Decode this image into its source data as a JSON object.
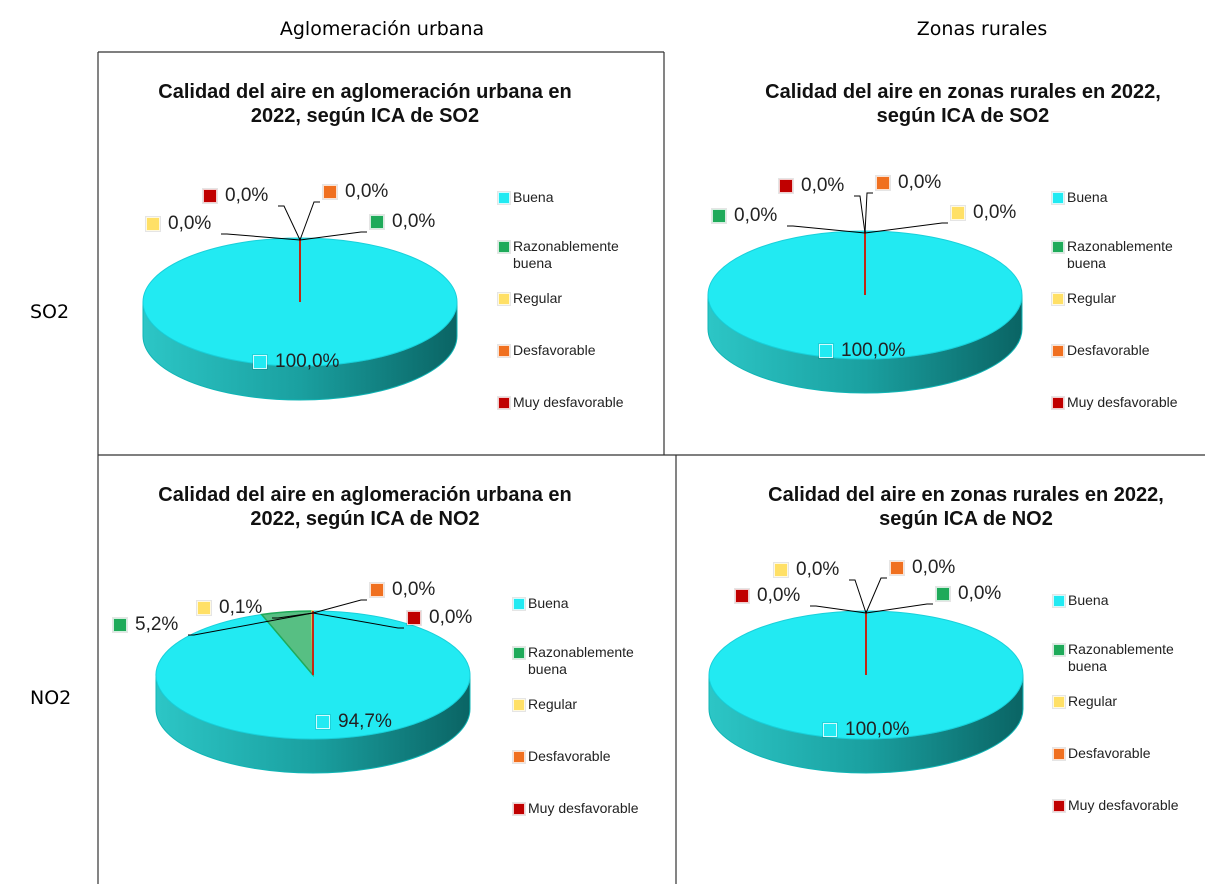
{
  "header": {
    "columns": [
      "Aglomeración urbana",
      "Zonas rurales"
    ],
    "rows": [
      "SO2",
      "NO2"
    ]
  },
  "chart_data": [
    {
      "type": "pie",
      "title": "Calidad del aire en aglomeración urbana en 2022, según ICA de SO2",
      "categories": [
        "Buena",
        "Razonablemente buena",
        "Regular",
        "Desfavorable",
        "Muy desfavorable"
      ],
      "values": [
        100,
        0,
        0,
        0,
        0
      ],
      "value_labels": [
        "100,0%",
        "0,0%",
        "0,0%",
        "0,0%",
        "0,0%"
      ],
      "colors": [
        "#22eaf2",
        "#1faa5a",
        "#ffe066",
        "#f07020",
        "#c00000"
      ]
    },
    {
      "type": "pie",
      "title": "Calidad del aire en zonas rurales en 2022, según ICA de SO2",
      "categories": [
        "Buena",
        "Razonablemente buena",
        "Regular",
        "Desfavorable",
        "Muy desfavorable"
      ],
      "values": [
        100,
        0,
        0,
        0,
        0
      ],
      "value_labels": [
        "100,0%",
        "0,0%",
        "0,0%",
        "0,0%",
        "0,0%"
      ],
      "colors": [
        "#22eaf2",
        "#1faa5a",
        "#ffe066",
        "#f07020",
        "#c00000"
      ]
    },
    {
      "type": "pie",
      "title": "Calidad del aire en aglomeración urbana  en 2022, según ICA de NO2",
      "categories": [
        "Buena",
        "Razonablemente buena",
        "Regular",
        "Desfavorable",
        "Muy desfavorable"
      ],
      "values": [
        94.7,
        5.2,
        0.1,
        0,
        0
      ],
      "value_labels": [
        "94,7%",
        "5,2%",
        "0,1%",
        "0,0%",
        "0,0%"
      ],
      "colors": [
        "#22eaf2",
        "#1faa5a",
        "#ffe066",
        "#f07020",
        "#c00000"
      ]
    },
    {
      "type": "pie",
      "title": "Calidad del aire en zonas rurales en 2022, según ICA de NO2",
      "categories": [
        "Buena",
        "Razonablemente buena",
        "Regular",
        "Desfavorable",
        "Muy desfavorable"
      ],
      "values": [
        100,
        0,
        0,
        0,
        0
      ],
      "value_labels": [
        "100,0%",
        "0,0%",
        "0,0%",
        "0,0%",
        "0,0%"
      ],
      "colors": [
        "#22eaf2",
        "#1faa5a",
        "#ffe066",
        "#f07020",
        "#c00000"
      ]
    }
  ]
}
